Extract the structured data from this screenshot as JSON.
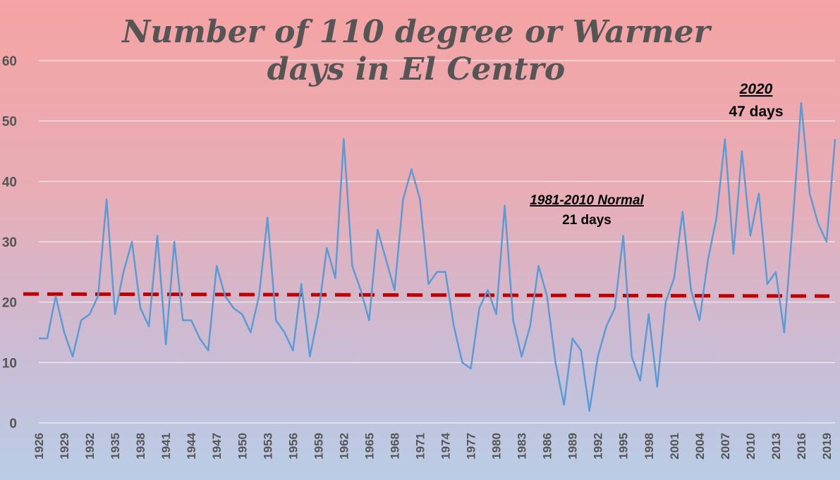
{
  "chart_data": {
    "type": "line",
    "title_line1": "Number of 110 degree or Warmer",
    "title_line2": "days in El Centro",
    "ylim": [
      0,
      60
    ],
    "yticks": [
      0,
      10,
      20,
      30,
      40,
      50,
      60
    ],
    "grid": true,
    "x_start": 1926,
    "x_end": 2020,
    "xtick_labels": [
      "1926",
      "1929",
      "1932",
      "1935",
      "1938",
      "1941",
      "1944",
      "1947",
      "1950",
      "1953",
      "1956",
      "1959",
      "1962",
      "1965",
      "1968",
      "1971",
      "1974",
      "1977",
      "1980",
      "1983",
      "1986",
      "1989",
      "1992",
      "1995",
      "1998",
      "2001",
      "2004",
      "2007",
      "2010",
      "2013",
      "2016",
      "2019"
    ],
    "series": [
      {
        "color": "#5b9bd5",
        "x": [
          1926,
          1927,
          1928,
          1929,
          1930,
          1931,
          1932,
          1933,
          1934,
          1935,
          1936,
          1937,
          1938,
          1939,
          1940,
          1941,
          1942,
          1943,
          1944,
          1945,
          1946,
          1947,
          1948,
          1949,
          1950,
          1951,
          1952,
          1953,
          1954,
          1955,
          1956,
          1957,
          1958,
          1959,
          1960,
          1961,
          1962,
          1963,
          1964,
          1965,
          1966,
          1967,
          1968,
          1969,
          1970,
          1971,
          1972,
          1973,
          1974,
          1975,
          1976,
          1977,
          1978,
          1979,
          1980,
          1981,
          1982,
          1983,
          1984,
          1985,
          1986,
          1987,
          1988,
          1989,
          1990,
          1991,
          1992,
          1993,
          1994,
          1995,
          1996,
          1997,
          1998,
          1999,
          2000,
          2001,
          2002,
          2003,
          2004,
          2005,
          2006,
          2007,
          2008,
          2009,
          2010,
          2011,
          2012,
          2013,
          2014,
          2015,
          2016,
          2017,
          2018,
          2019,
          2020
        ],
        "values": [
          14,
          14,
          21,
          15,
          11,
          17,
          18,
          21,
          37,
          18,
          25,
          30,
          19,
          16,
          31,
          13,
          30,
          17,
          17,
          14,
          12,
          26,
          21,
          19,
          18,
          15,
          21,
          34,
          17,
          15,
          12,
          23,
          11,
          18,
          29,
          24,
          47,
          26,
          22,
          17,
          32,
          27,
          22,
          37,
          42,
          37,
          23,
          25,
          25,
          16,
          10,
          9,
          19,
          22,
          18,
          36,
          17,
          11,
          16,
          26,
          21,
          10,
          3,
          14,
          12,
          2,
          11,
          16,
          19,
          31,
          11,
          7,
          18,
          6,
          20,
          24,
          35,
          22,
          17,
          27,
          34,
          47,
          28,
          45,
          31,
          38,
          23,
          25,
          15,
          33,
          53,
          38,
          33,
          30,
          47
        ]
      }
    ],
    "normal_line": {
      "value": 21,
      "color": "#c00000"
    },
    "annotations": [
      {
        "title": "2020",
        "subtitle": "47 days"
      },
      {
        "title": "1981-2010 Normal",
        "subtitle": "21 days"
      }
    ]
  }
}
